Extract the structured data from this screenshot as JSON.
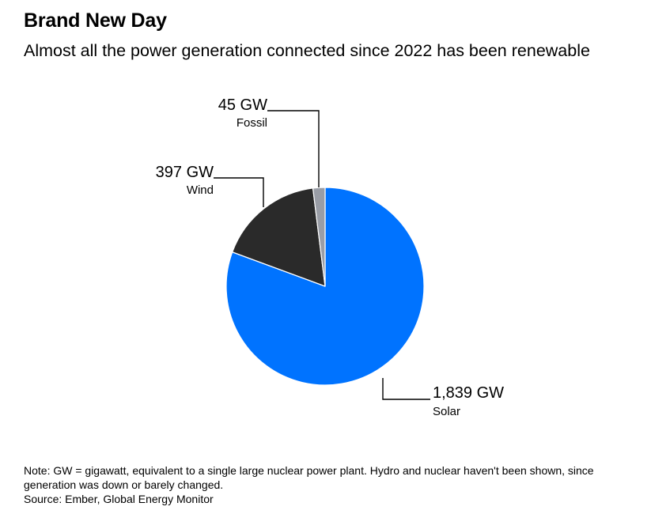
{
  "header": {
    "title": "Brand New Day",
    "subtitle": "Almost all the power generation connected since 2022 has been renewable"
  },
  "chart_data": {
    "type": "pie",
    "unit": "GW",
    "slices": [
      {
        "name": "Solar",
        "value": 1839,
        "value_label": "1,839 GW",
        "color": "#0073ff"
      },
      {
        "name": "Wind",
        "value": 397,
        "value_label": "397 GW",
        "color": "#2a2a2a"
      },
      {
        "name": "Fossil",
        "value": 45,
        "value_label": "45 GW",
        "color": "#999da6"
      }
    ],
    "start": "12 o'clock",
    "direction": "clockwise",
    "legend": "none"
  },
  "footer": {
    "note": "Note: GW = gigawatt, equivalent to a single large nuclear power plant. Hydro and nuclear haven't been shown, since generation was down or barely changed.",
    "source": "Source: Ember, Global Energy Monitor"
  }
}
